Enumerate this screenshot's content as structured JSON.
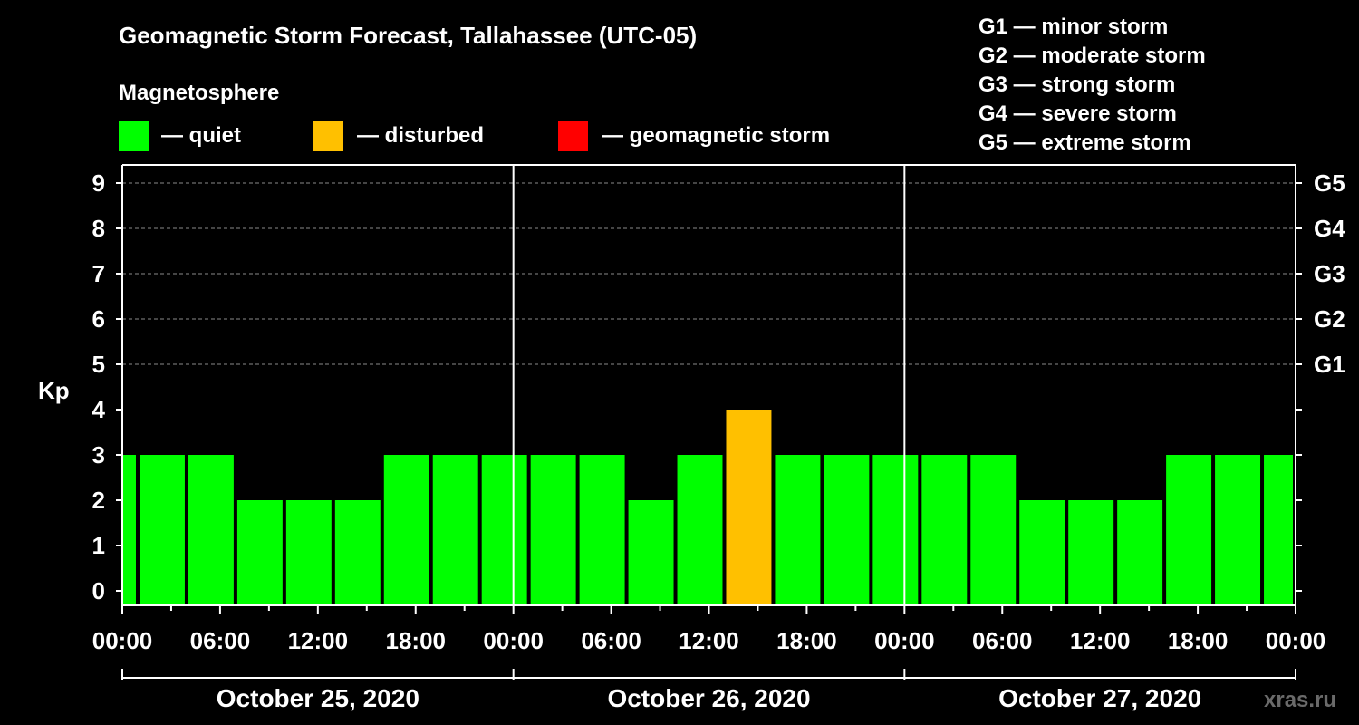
{
  "chart_data": {
    "type": "bar",
    "title": "Geomagnetic Storm Forecast, Tallahassee (UTC-05)",
    "legend_title": "Magnetosphere",
    "legend": [
      {
        "label": "— quiet",
        "color": "#00ff00"
      },
      {
        "label": "— disturbed",
        "color": "#ffc000"
      },
      {
        "label": "— geomagnetic storm",
        "color": "#ff0000"
      }
    ],
    "storm_scale": [
      "G1 — minor storm",
      "G2 — moderate storm",
      "G3 — strong storm",
      "G4 — severe storm",
      "G5 — extreme storm"
    ],
    "ylabel": "Kp",
    "ylim": [
      0,
      9
    ],
    "y_ticks": [
      "0",
      "1",
      "2",
      "3",
      "4",
      "5",
      "6",
      "7",
      "8",
      "9"
    ],
    "right_ticks": [
      {
        "kp": 5,
        "label": "G1"
      },
      {
        "kp": 6,
        "label": "G2"
      },
      {
        "kp": 7,
        "label": "G3"
      },
      {
        "kp": 8,
        "label": "G4"
      },
      {
        "kp": 9,
        "label": "G5"
      }
    ],
    "x_range_hours": [
      0,
      72
    ],
    "bar_interval_hours": 3,
    "values": [
      3,
      3,
      3,
      2,
      2,
      2,
      3,
      3,
      3,
      3,
      3,
      2,
      3,
      4,
      3,
      3,
      3,
      3,
      3,
      2,
      2,
      2,
      3,
      3,
      3
    ],
    "first_bar_start_hour": -2,
    "x_tick_labels": [
      "00:00",
      "06:00",
      "12:00",
      "18:00",
      "00:00",
      "06:00",
      "12:00",
      "18:00",
      "00:00",
      "06:00",
      "12:00",
      "18:00",
      "00:00"
    ],
    "days": [
      "October 25, 2020",
      "October 26, 2020",
      "October 27, 2020"
    ],
    "grid": "dashed at Kp 5-9",
    "colors": {
      "quiet": "#00ff00",
      "disturbed": "#ffc000",
      "storm": "#ff0000"
    }
  },
  "watermark": "xras.ru"
}
